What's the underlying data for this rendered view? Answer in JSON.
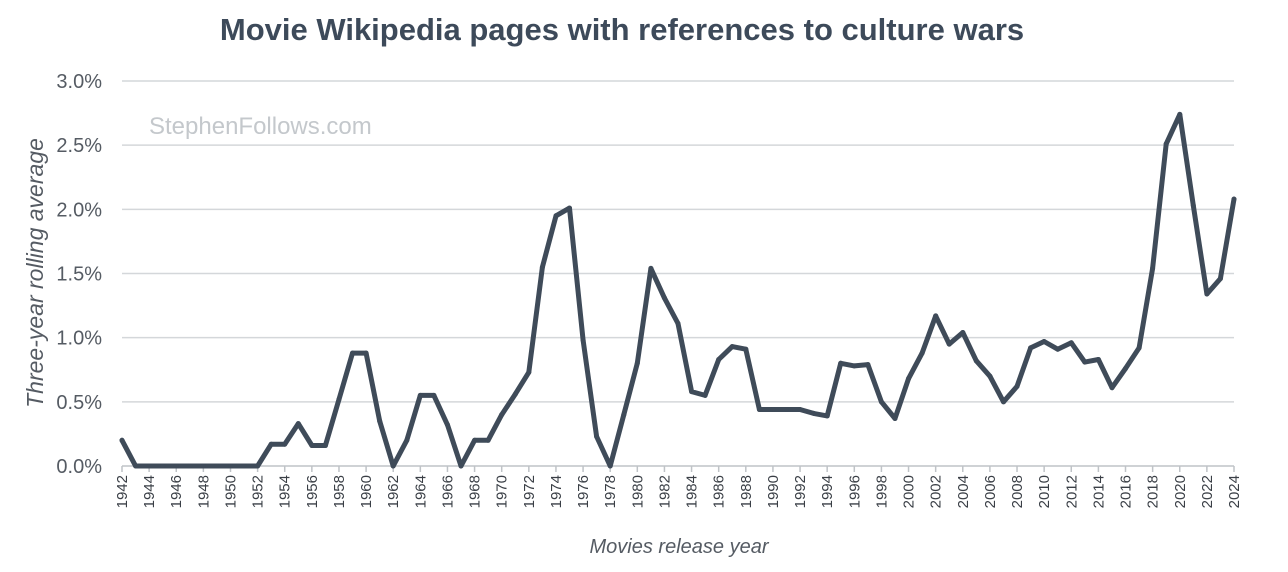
{
  "chart_data": {
    "type": "line",
    "title": "Movie Wikipedia pages with references to culture wars",
    "xlabel": "Movies release year",
    "ylabel": "Three-year rolling average",
    "watermark": "StephenFollows.com",
    "xlim": [
      1942,
      2024
    ],
    "ylim": [
      0,
      3.0
    ],
    "y_unit": "%",
    "y_ticks": [
      "0.0%",
      "0.5%",
      "1.0%",
      "1.5%",
      "2.0%",
      "2.5%",
      "3.0%"
    ],
    "y_tick_values": [
      0,
      0.5,
      1.0,
      1.5,
      2.0,
      2.5,
      3.0
    ],
    "x_ticks": [
      "1942",
      "1944",
      "1946",
      "1948",
      "1950",
      "1952",
      "1954",
      "1956",
      "1958",
      "1960",
      "1962",
      "1964",
      "1966",
      "1968",
      "1970",
      "1972",
      "1974",
      "1976",
      "1978",
      "1980",
      "1982",
      "1984",
      "1986",
      "1988",
      "1990",
      "1992",
      "1994",
      "1996",
      "1998",
      "2000",
      "2002",
      "2004",
      "2006",
      "2008",
      "2010",
      "2012",
      "2014",
      "2016",
      "2018",
      "2020",
      "2022",
      "2024"
    ],
    "grid": true,
    "line_color": "#3f4b59",
    "x": [
      1942,
      1943,
      1944,
      1945,
      1946,
      1947,
      1948,
      1949,
      1950,
      1951,
      1952,
      1953,
      1954,
      1955,
      1956,
      1957,
      1958,
      1959,
      1960,
      1961,
      1962,
      1963,
      1964,
      1965,
      1966,
      1967,
      1968,
      1969,
      1970,
      1971,
      1972,
      1973,
      1974,
      1975,
      1976,
      1977,
      1978,
      1979,
      1980,
      1981,
      1982,
      1983,
      1984,
      1985,
      1986,
      1987,
      1988,
      1989,
      1990,
      1991,
      1992,
      1993,
      1994,
      1995,
      1996,
      1997,
      1998,
      1999,
      2000,
      2001,
      2002,
      2003,
      2004,
      2005,
      2006,
      2007,
      2008,
      2009,
      2010,
      2011,
      2012,
      2013,
      2014,
      2015,
      2016,
      2017,
      2018,
      2019,
      2020,
      2021,
      2022,
      2023,
      2024
    ],
    "values": [
      0.2,
      0.0,
      0.0,
      0.0,
      0.0,
      0.0,
      0.0,
      0.0,
      0.0,
      0.0,
      0.0,
      0.17,
      0.17,
      0.33,
      0.16,
      0.16,
      0.52,
      0.88,
      0.88,
      0.35,
      0.0,
      0.2,
      0.55,
      0.55,
      0.32,
      0.0,
      0.2,
      0.2,
      0.4,
      0.56,
      0.73,
      1.55,
      1.95,
      2.01,
      0.98,
      0.23,
      0.0,
      0.4,
      0.8,
      1.54,
      1.31,
      1.11,
      0.58,
      0.55,
      0.83,
      0.93,
      0.91,
      0.44,
      0.44,
      0.44,
      0.44,
      0.41,
      0.39,
      0.8,
      0.78,
      0.79,
      0.5,
      0.37,
      0.68,
      0.88,
      1.17,
      0.95,
      1.04,
      0.82,
      0.7,
      0.5,
      0.62,
      0.92,
      0.97,
      0.91,
      0.96,
      0.81,
      0.83,
      0.61,
      0.76,
      0.92,
      1.54,
      2.51,
      2.74,
      2.03,
      1.34,
      1.46,
      2.08
    ]
  }
}
